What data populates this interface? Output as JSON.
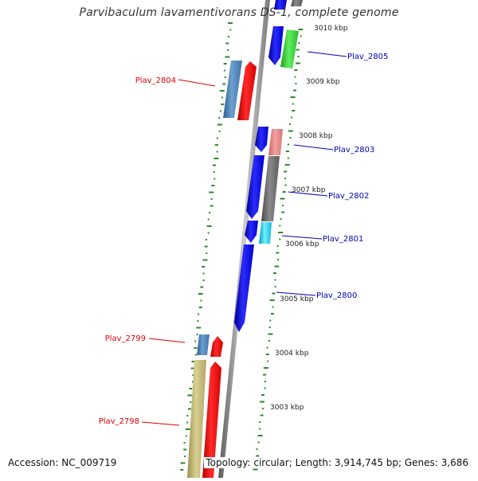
{
  "title": "Parvibaculum lavamentivorans DS-1, complete genome",
  "accession": "Accession: NC_009719",
  "topology": "Topology: circular; Length: 3,914,745 bp; Genes: 3,686",
  "colors": {
    "backbone": "#8c8c8c",
    "tick": "#2a8a2a",
    "label_forward": "#0000bb",
    "label_reverse": "#dd0000"
  },
  "scale_labels": [
    "3010 kbp",
    "3009 kbp",
    "3008 kbp",
    "3007 kbp",
    "3006 kbp",
    "3005 kbp",
    "3004 kbp",
    "3003 kbp"
  ],
  "genes": [
    {
      "name": "Plav_2805",
      "strand": "forward"
    },
    {
      "name": "Plav_2804",
      "strand": "reverse"
    },
    {
      "name": "Plav_2803",
      "strand": "forward"
    },
    {
      "name": "Plav_2802",
      "strand": "forward"
    },
    {
      "name": "Plav_2801",
      "strand": "forward"
    },
    {
      "name": "Plav_2800",
      "strand": "forward"
    },
    {
      "name": "Plav_2799",
      "strand": "reverse"
    },
    {
      "name": "Plav_2798",
      "strand": "reverse"
    }
  ]
}
